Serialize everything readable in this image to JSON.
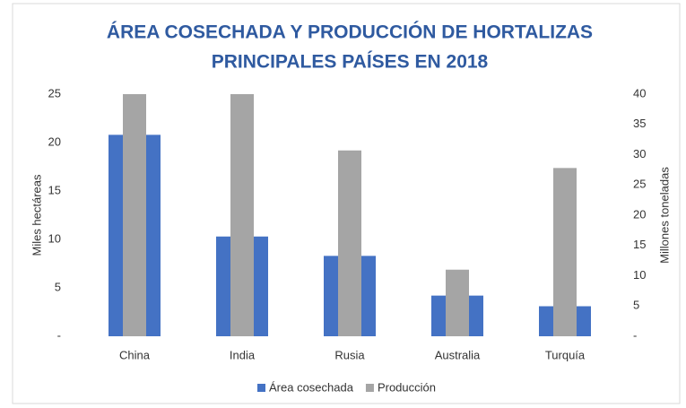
{
  "chart_data": {
    "type": "bar",
    "title": [
      "ÁREA COSECHADA Y PRODUCCIÓN DE HORTALIZAS",
      "PRINCIPALES PAÍSES EN 2018"
    ],
    "ylabel": "Miles hectáreas",
    "y2label": "Millones toneladas",
    "categories": [
      "China",
      "India",
      "Rusia",
      "Australia",
      "Turquía"
    ],
    "series": [
      {
        "name": "Área cosechada",
        "color": "#4472c4",
        "values": [
          20.8,
          10.3,
          8.3,
          4.2,
          3.1
        ]
      },
      {
        "name": "Producción",
        "color": "#a5a5a5",
        "axis": "y2",
        "values": [
          40,
          40,
          30.7,
          11.0,
          27.8
        ]
      }
    ],
    "ylim": [
      0,
      25
    ],
    "yticks": [
      {
        "value": 0,
        "label": "-"
      },
      5,
      10,
      15,
      20,
      25
    ],
    "y2lim": [
      0,
      40
    ],
    "y2ticks": [
      {
        "value": 0,
        "label": "-"
      },
      5,
      10,
      15,
      20,
      25,
      30,
      35,
      40
    ],
    "legend": "bottom",
    "grid": false
  }
}
